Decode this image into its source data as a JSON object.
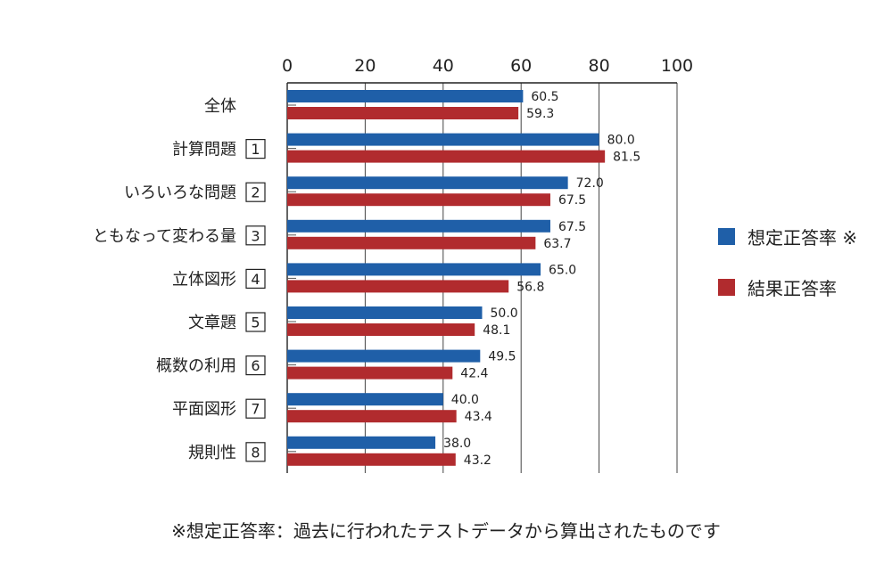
{
  "chart_data": {
    "type": "bar",
    "orientation": "horizontal",
    "title": "",
    "xlabel": "",
    "ylabel": "",
    "xlim": [
      0,
      100
    ],
    "xticks": [
      "0",
      "20",
      "40",
      "60",
      "80",
      "100"
    ],
    "grid": true,
    "categories": [
      {
        "label": "全体",
        "num": ""
      },
      {
        "label": "計算問題",
        "num": "1"
      },
      {
        "label": "いろいろな問題",
        "num": "2"
      },
      {
        "label": "ともなって変わる量",
        "num": "3"
      },
      {
        "label": "立体図形",
        "num": "4"
      },
      {
        "label": "文章題",
        "num": "5"
      },
      {
        "label": "概数の利用",
        "num": "6"
      },
      {
        "label": "平面図形",
        "num": "7"
      },
      {
        "label": "規則性",
        "num": "8"
      }
    ],
    "series": [
      {
        "name": "想定正答率 ※",
        "color": "#1f5fa8",
        "values": [
          60.5,
          80.0,
          72.0,
          67.5,
          65.0,
          50.0,
          49.5,
          40.0,
          38.0
        ],
        "labels": [
          "60.5",
          "80.0",
          "72.0",
          "67.5",
          "65.0",
          "50.0",
          "49.5",
          "40.0",
          "38.0"
        ]
      },
      {
        "name": "結果正答率",
        "color": "#b12b2e",
        "values": [
          59.3,
          81.5,
          67.5,
          63.7,
          56.8,
          48.1,
          42.4,
          43.4,
          43.2
        ],
        "labels": [
          "59.3",
          "81.5",
          "67.5",
          "63.7",
          "56.8",
          "48.1",
          "42.4",
          "43.4",
          "43.2"
        ]
      }
    ],
    "legend_position": "right"
  },
  "footnote": "※想定正答率：過去に行われたテストデータから算出されたものです"
}
